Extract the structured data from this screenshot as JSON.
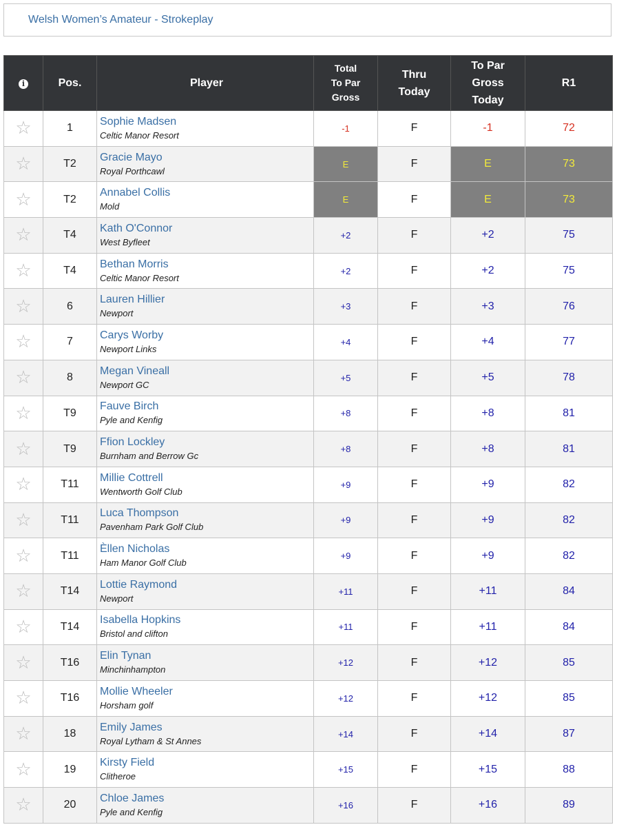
{
  "header": {
    "title": "Welsh Women’s Amateur - Strokeplay"
  },
  "table": {
    "columns": {
      "info_icon": "info-icon",
      "pos": "Pos.",
      "player": "Player",
      "total_line1": "Total",
      "total_line2": "To Par",
      "total_line3": "Gross",
      "thru_line1": "Thru",
      "thru_line2": "Today",
      "topar_line1": "To Par",
      "topar_line2": "Gross",
      "topar_line3": "Today",
      "r1": "R1"
    },
    "rows": [
      {
        "pos": "1",
        "name": "Sophie Madsen",
        "club": "Celtic Manor Resort",
        "total": "-1",
        "thru": "F",
        "topar": "-1",
        "r1": "72",
        "style": "under"
      },
      {
        "pos": "T2",
        "name": "Gracie Mayo",
        "club": "Royal Porthcawl",
        "total": "E",
        "thru": "F",
        "topar": "E",
        "r1": "73",
        "style": "even"
      },
      {
        "pos": "T2",
        "name": "Annabel Collis",
        "club": "Mold",
        "total": "E",
        "thru": "F",
        "topar": "E",
        "r1": "73",
        "style": "even"
      },
      {
        "pos": "T4",
        "name": "Kath O'Connor",
        "club": "West Byfleet",
        "total": "+2",
        "thru": "F",
        "topar": "+2",
        "r1": "75",
        "style": "over"
      },
      {
        "pos": "T4",
        "name": "Bethan Morris",
        "club": "Celtic Manor Resort",
        "total": "+2",
        "thru": "F",
        "topar": "+2",
        "r1": "75",
        "style": "over"
      },
      {
        "pos": "6",
        "name": "Lauren Hillier",
        "club": "Newport",
        "total": "+3",
        "thru": "F",
        "topar": "+3",
        "r1": "76",
        "style": "over"
      },
      {
        "pos": "7",
        "name": "Carys Worby",
        "club": "Newport Links",
        "total": "+4",
        "thru": "F",
        "topar": "+4",
        "r1": "77",
        "style": "over"
      },
      {
        "pos": "8",
        "name": "Megan Vineall",
        "club": "Newport GC",
        "total": "+5",
        "thru": "F",
        "topar": "+5",
        "r1": "78",
        "style": "over"
      },
      {
        "pos": "T9",
        "name": "Fauve Birch",
        "club": "Pyle and Kenfig",
        "total": "+8",
        "thru": "F",
        "topar": "+8",
        "r1": "81",
        "style": "over"
      },
      {
        "pos": "T9",
        "name": "Ffion Lockley",
        "club": "Burnham and Berrow Gc",
        "total": "+8",
        "thru": "F",
        "topar": "+8",
        "r1": "81",
        "style": "over"
      },
      {
        "pos": "T11",
        "name": "Millie Cottrell",
        "club": "Wentworth Golf Club",
        "total": "+9",
        "thru": "F",
        "topar": "+9",
        "r1": "82",
        "style": "over"
      },
      {
        "pos": "T11",
        "name": "Luca Thompson",
        "club": "Pavenham Park Golf Club",
        "total": "+9",
        "thru": "F",
        "topar": "+9",
        "r1": "82",
        "style": "over"
      },
      {
        "pos": "T11",
        "name": "Èllen Nicholas",
        "club": "Ham Manor Golf Club",
        "total": "+9",
        "thru": "F",
        "topar": "+9",
        "r1": "82",
        "style": "over"
      },
      {
        "pos": "T14",
        "name": "Lottie Raymond",
        "club": "Newport",
        "total": "+11",
        "thru": "F",
        "topar": "+11",
        "r1": "84",
        "style": "over"
      },
      {
        "pos": "T14",
        "name": "Isabella Hopkins",
        "club": "Bristol and clifton",
        "total": "+11",
        "thru": "F",
        "topar": "+11",
        "r1": "84",
        "style": "over"
      },
      {
        "pos": "T16",
        "name": "Elin Tynan",
        "club": "Minchinhampton",
        "total": "+12",
        "thru": "F",
        "topar": "+12",
        "r1": "85",
        "style": "over"
      },
      {
        "pos": "T16",
        "name": "Mollie Wheeler",
        "club": "Horsham golf",
        "total": "+12",
        "thru": "F",
        "topar": "+12",
        "r1": "85",
        "style": "over"
      },
      {
        "pos": "18",
        "name": "Emily James",
        "club": "Royal Lytham & St Annes",
        "total": "+14",
        "thru": "F",
        "topar": "+14",
        "r1": "87",
        "style": "over"
      },
      {
        "pos": "19",
        "name": "Kirsty Field",
        "club": "Clitheroe",
        "total": "+15",
        "thru": "F",
        "topar": "+15",
        "r1": "88",
        "style": "over"
      },
      {
        "pos": "20",
        "name": "Chloe James",
        "club": "Pyle and Kenfig",
        "total": "+16",
        "thru": "F",
        "topar": "+16",
        "r1": "89",
        "style": "over"
      }
    ]
  },
  "colors": {
    "link": "#3a6fa5",
    "header_bg": "#333538",
    "under_par": "#d63020",
    "over_par": "#2222aa",
    "even_bg": "#808080",
    "even_text": "#f2ea3a"
  }
}
